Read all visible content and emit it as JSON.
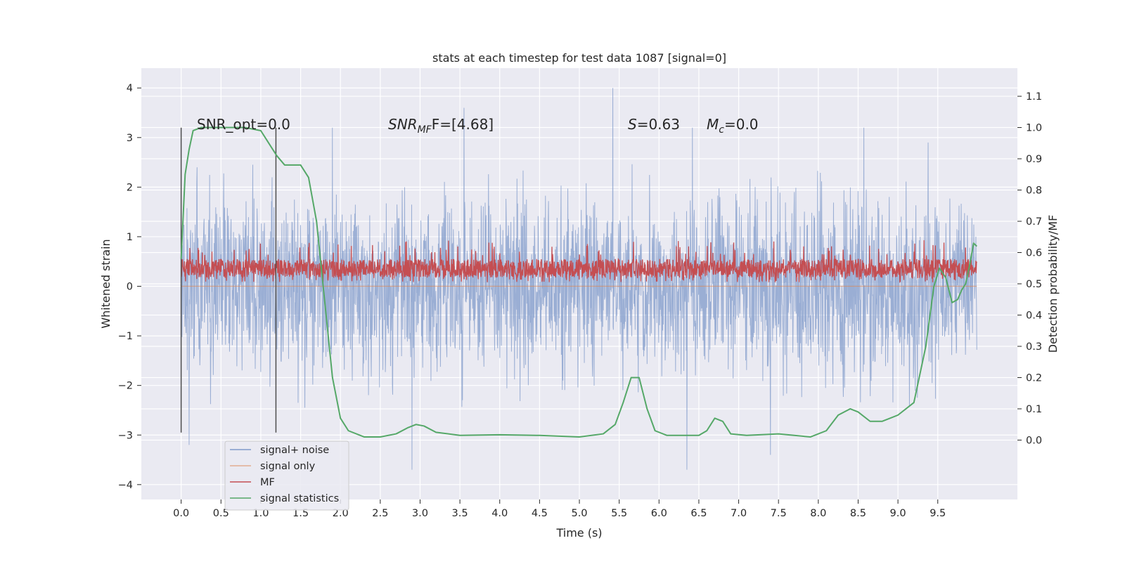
{
  "chart_data": {
    "type": "line",
    "title": "stats at each timestep for test data 1087 [signal=0]",
    "xlabel": "Time (s)",
    "ylabel": "Whitened strain",
    "y2label": "Detection probability/MF",
    "xlim": [
      -0.5,
      10.5
    ],
    "ylim": [
      -4.3,
      4.4
    ],
    "y2lim": [
      -0.19,
      1.19
    ],
    "xticks": [
      "0.0",
      "0.5",
      "1.0",
      "1.5",
      "2.0",
      "2.5",
      "3.0",
      "3.5",
      "4.0",
      "4.5",
      "5.0",
      "5.5",
      "6.0",
      "6.5",
      "7.0",
      "7.5",
      "8.0",
      "8.5",
      "9.0",
      "9.5"
    ],
    "yticks": [
      "4",
      "3",
      "2",
      "1",
      "0",
      "−1",
      "−2",
      "−3",
      "−4"
    ],
    "y2ticks": [
      "1.1",
      "1.0",
      "0.9",
      "0.8",
      "0.7",
      "0.6",
      "0.5",
      "0.4",
      "0.3",
      "0.2",
      "0.1",
      "0.0"
    ],
    "grid": true,
    "legend_position": "lower-left",
    "colors": {
      "signal_noise": "#7f99c9",
      "signal_only": "#dd8452",
      "mf": "#c44e52",
      "stats": "#55a868",
      "background": "#eaeaf2",
      "grid": "#ffffff"
    },
    "window_markers_x": [
      0.0,
      1.19
    ],
    "annotations": {
      "snr_opt": "SNR_opt=0.0",
      "snr_mf_base": "SNR",
      "snr_mf_sub": "MF",
      "snr_mf_tail": "F=[4.68]",
      "s_label": "S",
      "s_value": "=0.63",
      "mc_base": "M",
      "mc_sub": "c",
      "mc_value": "=0.0"
    },
    "series": [
      {
        "name": "signal+ noise",
        "color": "#7f99c9",
        "x_range": [
          0.0,
          9.99
        ],
        "y_envelope": [
          -3.7,
          4.0
        ],
        "notable_extremes": [
          [
            0.2,
            2.4
          ],
          [
            0.1,
            -3.2
          ],
          [
            1.9,
            3.2
          ],
          [
            2.9,
            -3.7
          ],
          [
            3.55,
            3.6
          ],
          [
            5.42,
            4.0
          ],
          [
            6.35,
            -3.7
          ],
          [
            6.42,
            3.2
          ],
          [
            8.57,
            3.2
          ],
          [
            9.38,
            2.9
          ],
          [
            7.4,
            -3.4
          ]
        ]
      },
      {
        "name": "signal only",
        "color": "#dd8452",
        "x": [
          0.0,
          9.99
        ],
        "y": [
          0.0,
          0.0
        ]
      },
      {
        "name": "MF",
        "color": "#c44e52",
        "axis": "right",
        "x_range": [
          0.0,
          9.99
        ],
        "typical_range": [
          0.52,
          0.59
        ],
        "peak": 0.64
      },
      {
        "name": "signal statistics",
        "color": "#55a868",
        "axis": "right",
        "x": [
          0.0,
          0.05,
          0.1,
          0.15,
          0.25,
          0.5,
          0.8,
          1.0,
          1.1,
          1.2,
          1.3,
          1.4,
          1.5,
          1.6,
          1.7,
          1.8,
          1.9,
          2.0,
          2.1,
          2.3,
          2.5,
          2.7,
          2.85,
          2.95,
          3.05,
          3.2,
          3.5,
          4.0,
          4.5,
          5.0,
          5.3,
          5.45,
          5.55,
          5.65,
          5.75,
          5.85,
          5.95,
          6.1,
          6.3,
          6.5,
          6.6,
          6.7,
          6.8,
          6.9,
          7.1,
          7.5,
          7.9,
          8.1,
          8.25,
          8.4,
          8.5,
          8.65,
          8.8,
          9.0,
          9.2,
          9.35,
          9.45,
          9.52,
          9.6,
          9.68,
          9.75,
          9.8,
          9.85,
          9.9,
          9.95,
          9.99
        ],
        "y": [
          0.58,
          0.85,
          0.93,
          0.99,
          1.0,
          1.0,
          1.0,
          0.99,
          0.95,
          0.91,
          0.88,
          0.88,
          0.88,
          0.84,
          0.7,
          0.45,
          0.2,
          0.07,
          0.03,
          0.01,
          0.01,
          0.02,
          0.04,
          0.05,
          0.045,
          0.025,
          0.015,
          0.017,
          0.015,
          0.01,
          0.02,
          0.05,
          0.12,
          0.2,
          0.2,
          0.1,
          0.03,
          0.015,
          0.015,
          0.015,
          0.03,
          0.07,
          0.06,
          0.02,
          0.015,
          0.02,
          0.01,
          0.03,
          0.08,
          0.1,
          0.09,
          0.06,
          0.06,
          0.08,
          0.12,
          0.3,
          0.49,
          0.55,
          0.52,
          0.44,
          0.45,
          0.48,
          0.5,
          0.56,
          0.63,
          0.62
        ]
      }
    ]
  }
}
